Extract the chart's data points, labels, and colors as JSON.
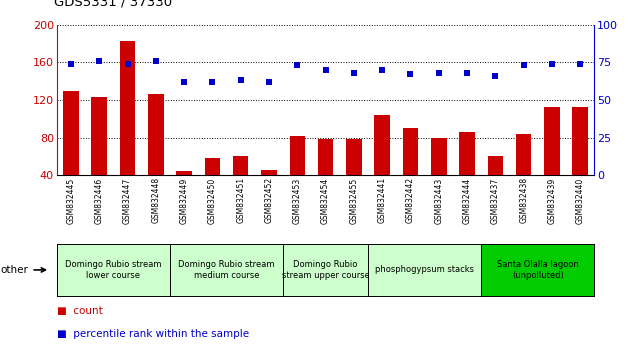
{
  "title": "GDS5331 / 37330",
  "samples": [
    "GSM832445",
    "GSM832446",
    "GSM832447",
    "GSM832448",
    "GSM832449",
    "GSM832450",
    "GSM832451",
    "GSM832452",
    "GSM832453",
    "GSM832454",
    "GSM832455",
    "GSM832441",
    "GSM832442",
    "GSM832443",
    "GSM832444",
    "GSM832437",
    "GSM832438",
    "GSM832439",
    "GSM832440"
  ],
  "counts": [
    130,
    123,
    183,
    126,
    44,
    58,
    60,
    46,
    82,
    78,
    78,
    104,
    90,
    80,
    86,
    60,
    84,
    113,
    113
  ],
  "percentiles": [
    74,
    76,
    74,
    76,
    62,
    62,
    63,
    62,
    73,
    70,
    68,
    70,
    67,
    68,
    68,
    66,
    73,
    74,
    74
  ],
  "ylim_left": [
    40,
    200
  ],
  "ylim_right": [
    0,
    100
  ],
  "yticks_left": [
    40,
    80,
    120,
    160,
    200
  ],
  "yticks_right": [
    0,
    25,
    50,
    75,
    100
  ],
  "bar_color": "#cc0000",
  "dot_color": "#0000cc",
  "groups": [
    {
      "label": "Domingo Rubio stream\nlower course",
      "start": 0,
      "end": 3,
      "color": "#ccffcc"
    },
    {
      "label": "Domingo Rubio stream\nmedium course",
      "start": 4,
      "end": 7,
      "color": "#ccffcc"
    },
    {
      "label": "Domingo Rubio\nstream upper course",
      "start": 8,
      "end": 10,
      "color": "#ccffcc"
    },
    {
      "label": "phosphogypsum stacks",
      "start": 11,
      "end": 14,
      "color": "#ccffcc"
    },
    {
      "label": "Santa Olalla lagoon\n(unpolluted)",
      "start": 15,
      "end": 18,
      "color": "#00cc00"
    }
  ],
  "legend_count_label": "count",
  "legend_pct_label": "percentile rank within the sample",
  "other_label": "other",
  "tick_shades": [
    "#c8c8c8",
    "#d8d8d8"
  ]
}
